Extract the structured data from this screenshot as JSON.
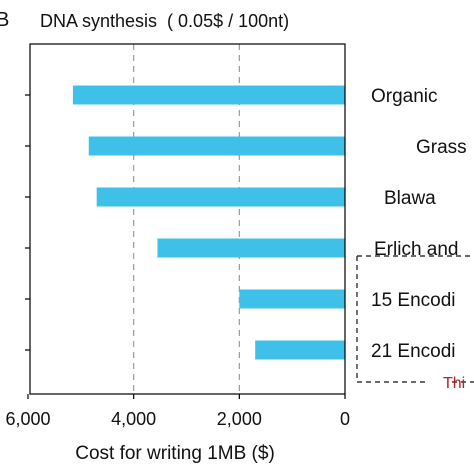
{
  "panel_label": "B",
  "chart_data": {
    "type": "bar",
    "orientation": "horizontal",
    "title": "DNA synthesis  ( 0.05$ / 100nt)",
    "xlabel": "Cost for writing 1MB ($)",
    "ylabel": "",
    "x_reversed": true,
    "xlim": [
      0,
      6000
    ],
    "xticks": [
      6000,
      4000,
      2000,
      0
    ],
    "xtick_labels": [
      "6,000",
      "4,000",
      "2,000",
      "0"
    ],
    "vertical_dashed_lines": [
      4000,
      2000
    ],
    "categories": [
      "Organic",
      "Grass",
      "Blawa",
      "Erlich and",
      "15 Encodi",
      "21 Encodi"
    ],
    "values": [
      5150,
      4850,
      4700,
      3550,
      2000,
      1700
    ],
    "bar_color": "#3ec0e9",
    "annotation": {
      "text": "Thi",
      "color": "#b22222",
      "boxed_categories": [
        "15 Encodi",
        "21 Encodi"
      ]
    }
  }
}
